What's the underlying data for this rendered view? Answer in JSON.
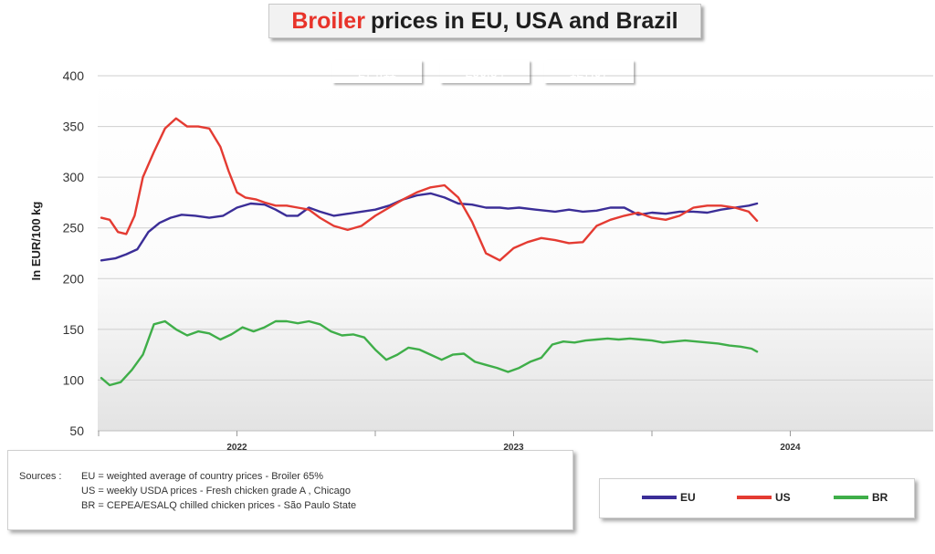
{
  "header": {
    "title_highlight": "Broiler",
    "title_rest": "prices in EU, USA and Brazil"
  },
  "badges": [
    {
      "key": "EU",
      "value": "274.11",
      "color": "#3b2e97"
    },
    {
      "key": "US",
      "value": "256.84",
      "color": "#e43b32"
    },
    {
      "key": "BR",
      "value": "127.97",
      "color": "#3fae49"
    }
  ],
  "sources": {
    "label": "Sources :",
    "lines": [
      "EU =  weighted average of country prices  - Broiler 65%",
      "US =  weekly USDA prices  -  Fresh chicken grade A , Chicago",
      "BR =  CEPEA/ESALQ chilled chicken prices - São Paulo State"
    ]
  },
  "legend": [
    {
      "label": "EU",
      "color": "#3b2e97"
    },
    {
      "label": "US",
      "color": "#e43b32"
    },
    {
      "label": "BR",
      "color": "#3fae49"
    }
  ],
  "chart_data": {
    "type": "line",
    "title": "Broiler prices in EU, USA and Brazil",
    "ylabel": "In EUR/100 kg",
    "xlabel": "",
    "ylim": [
      50,
      400
    ],
    "yticks": [
      50,
      100,
      150,
      200,
      250,
      300,
      350,
      400
    ],
    "xlim": [
      2021.5,
      2024.5
    ],
    "xticks": [
      {
        "value": 2022.0,
        "label": "2022"
      },
      {
        "value": 2023.0,
        "label": "2023"
      },
      {
        "value": 2024.0,
        "label": "2024"
      }
    ],
    "xminor": [
      2021.5,
      2022.5,
      2023.5
    ],
    "grid": true,
    "legend_position": "bottom-right",
    "series": [
      {
        "name": "EU",
        "color": "#3b2e97",
        "x": [
          2021.51,
          2021.56,
          2021.6,
          2021.64,
          2021.68,
          2021.72,
          2021.76,
          2021.8,
          2021.85,
          2021.9,
          2021.95,
          2022.0,
          2022.05,
          2022.1,
          2022.14,
          2022.18,
          2022.22,
          2022.26,
          2022.3,
          2022.35,
          2022.4,
          2022.45,
          2022.5,
          2022.55,
          2022.6,
          2022.65,
          2022.7,
          2022.75,
          2022.8,
          2022.85,
          2022.9,
          2022.95,
          2022.98,
          2023.02,
          2023.08,
          2023.15,
          2023.2,
          2023.25,
          2023.3,
          2023.35,
          2023.4,
          2023.45,
          2023.5,
          2023.55,
          2023.6,
          2023.65,
          2023.7,
          2023.75,
          2023.8,
          2023.85,
          2023.88
        ],
        "y": [
          218,
          220,
          224,
          229,
          246,
          255,
          260,
          263,
          262,
          260,
          262,
          270,
          274,
          273,
          268,
          262,
          262,
          270,
          266,
          262,
          264,
          266,
          268,
          272,
          278,
          282,
          284,
          280,
          274,
          273,
          270,
          270,
          269,
          270,
          268,
          266,
          268,
          266,
          267,
          270,
          270,
          263,
          265,
          264,
          266,
          266,
          265,
          268,
          270,
          272,
          274
        ]
      },
      {
        "name": "US",
        "color": "#e43b32",
        "x": [
          2021.51,
          2021.54,
          2021.57,
          2021.6,
          2021.63,
          2021.66,
          2021.7,
          2021.74,
          2021.78,
          2021.82,
          2021.86,
          2021.9,
          2021.94,
          2021.97,
          2022.0,
          2022.03,
          2022.07,
          2022.1,
          2022.14,
          2022.18,
          2022.22,
          2022.26,
          2022.3,
          2022.35,
          2022.4,
          2022.45,
          2022.5,
          2022.55,
          2022.6,
          2022.65,
          2022.7,
          2022.75,
          2022.8,
          2022.85,
          2022.9,
          2022.95,
          2023.0,
          2023.05,
          2023.1,
          2023.15,
          2023.2,
          2023.25,
          2023.3,
          2023.35,
          2023.4,
          2023.45,
          2023.5,
          2023.55,
          2023.6,
          2023.65,
          2023.7,
          2023.75,
          2023.8,
          2023.85,
          2023.88
        ],
        "y": [
          260,
          258,
          246,
          244,
          262,
          300,
          325,
          348,
          358,
          350,
          350,
          348,
          330,
          306,
          285,
          280,
          278,
          275,
          272,
          272,
          270,
          268,
          260,
          252,
          248,
          252,
          262,
          270,
          278,
          285,
          290,
          292,
          280,
          256,
          225,
          218,
          230,
          236,
          240,
          238,
          235,
          236,
          252,
          258,
          262,
          265,
          260,
          258,
          262,
          270,
          272,
          272,
          270,
          266,
          257
        ]
      },
      {
        "name": "BR",
        "color": "#3fae49",
        "x": [
          2021.51,
          2021.54,
          2021.58,
          2021.62,
          2021.66,
          2021.7,
          2021.74,
          2021.78,
          2021.82,
          2021.86,
          2021.9,
          2021.94,
          2021.98,
          2022.02,
          2022.06,
          2022.1,
          2022.14,
          2022.18,
          2022.22,
          2022.26,
          2022.3,
          2022.34,
          2022.38,
          2022.42,
          2022.46,
          2022.5,
          2022.54,
          2022.58,
          2022.62,
          2022.66,
          2022.7,
          2022.74,
          2022.78,
          2022.82,
          2022.86,
          2022.9,
          2022.94,
          2022.98,
          2023.02,
          2023.06,
          2023.1,
          2023.14,
          2023.18,
          2023.22,
          2023.26,
          2023.3,
          2023.34,
          2023.38,
          2023.42,
          2023.46,
          2023.5,
          2023.54,
          2023.58,
          2023.62,
          2023.66,
          2023.7,
          2023.74,
          2023.78,
          2023.82,
          2023.86,
          2023.88
        ],
        "y": [
          102,
          95,
          98,
          110,
          125,
          155,
          158,
          150,
          144,
          148,
          146,
          140,
          145,
          152,
          148,
          152,
          158,
          158,
          156,
          158,
          155,
          148,
          144,
          145,
          142,
          130,
          120,
          125,
          132,
          130,
          125,
          120,
          125,
          126,
          118,
          115,
          112,
          108,
          112,
          118,
          122,
          135,
          138,
          137,
          139,
          140,
          141,
          140,
          141,
          140,
          139,
          137,
          138,
          139,
          138,
          137,
          136,
          134,
          133,
          131,
          128
        ]
      }
    ]
  }
}
